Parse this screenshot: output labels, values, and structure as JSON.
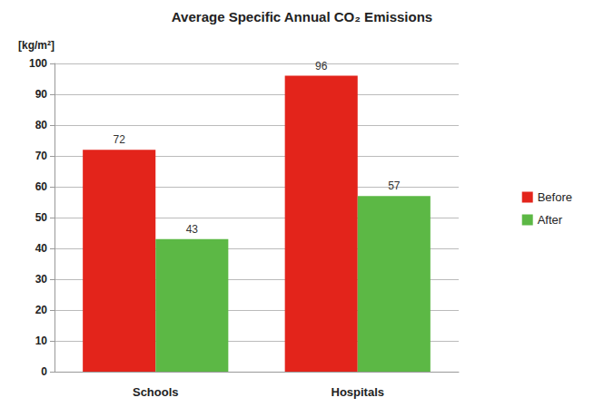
{
  "chart_data": {
    "type": "bar",
    "title": "Average Specific Annual CO₂ Emissions",
    "y_label": "[kg/m²]",
    "categories": [
      "Schools",
      "Hospitals"
    ],
    "series": [
      {
        "name": "Before",
        "color": "#e3241b",
        "values": [
          72,
          96
        ]
      },
      {
        "name": "After",
        "color": "#5cb845",
        "values": [
          43,
          57
        ]
      }
    ],
    "ylim": [
      0,
      100
    ],
    "yticks": [
      0,
      10,
      20,
      30,
      40,
      50,
      60,
      70,
      80,
      90,
      100
    ],
    "grid": true,
    "legend": "right",
    "data_labels": true
  }
}
